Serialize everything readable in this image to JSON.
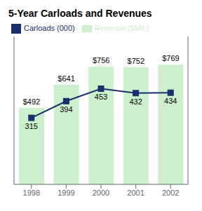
{
  "chart_data": {
    "type": "bar",
    "title": "5-Year Carloads and Revenues",
    "categories": [
      "1998",
      "1999",
      "2000",
      "2001",
      "2002"
    ],
    "series": [
      {
        "name": "Revenue ($Mil.)",
        "type": "bar",
        "color": "#ccf0cc",
        "values": [
          492,
          641,
          756,
          752,
          769
        ],
        "value_labels": [
          "$492",
          "$641",
          "$756",
          "$752",
          "$769"
        ]
      },
      {
        "name": "Carloads (000)",
        "type": "line",
        "color": "#1a2f6e",
        "marker": "square",
        "axis": "y2",
        "values": [
          315,
          394,
          453,
          432,
          434
        ]
      }
    ],
    "ylim": [
      0,
      950
    ],
    "y2lim": [
      0,
      700
    ],
    "data_labels": true,
    "tick_labels": "x",
    "legend": "upper left",
    "grid": false
  }
}
